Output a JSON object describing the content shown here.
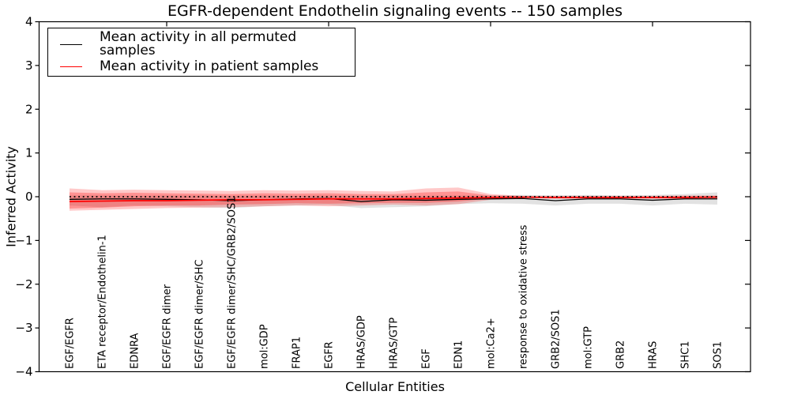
{
  "chart_data": {
    "type": "line",
    "title": "EGFR-dependent Endothelin signaling events -- 150 samples",
    "xlabel": "Cellular Entities",
    "ylabel": "Inferred Activity",
    "ylim": [
      -4,
      4
    ],
    "yticks": [
      -4,
      -3,
      -2,
      -1,
      0,
      1,
      2,
      3,
      4
    ],
    "grid": false,
    "legend_position": "upper left",
    "categories": [
      "EGF/EGFR",
      "ETA receptor/Endothelin-1",
      "EDNRA",
      "EGF/EGFR dimer",
      "EGF/EGFR dimer/SHC",
      "EGF/EGFR dimer/SHC/GRB2/SOS1",
      "mol:GDP",
      "FRAP1",
      "EGFR",
      "HRAS/GDP",
      "HRAS/GTP",
      "EGF",
      "EDN1",
      "mol:Ca2+",
      "response to oxidative stress",
      "GRB2/SOS1",
      "mol:GTP",
      "GRB2",
      "HRAS",
      "SHC1",
      "SOS1"
    ],
    "zero_line": {
      "value": 0,
      "style": "dotted",
      "color": "#000000"
    },
    "series": [
      {
        "name": "Mean activity in all permuted samples",
        "color": "#000000",
        "line_width": 1.3,
        "values": [
          -0.06,
          -0.05,
          -0.05,
          -0.06,
          -0.07,
          -0.09,
          -0.07,
          -0.05,
          -0.04,
          -0.11,
          -0.07,
          -0.08,
          -0.06,
          -0.05,
          -0.04,
          -0.09,
          -0.05,
          -0.05,
          -0.08,
          -0.05,
          -0.05
        ],
        "bands": [
          {
            "color": "rgba(125,125,125,0.22)",
            "hi": [
              0.03,
              0.03,
              0.02,
              0.03,
              0.03,
              0.02,
              0.03,
              0.02,
              0.03,
              0.02,
              0.03,
              0.02,
              0.03,
              0.03,
              0.04,
              0.03,
              0.04,
              0.03,
              0.04,
              0.06,
              0.1
            ],
            "lo": [
              -0.2,
              -0.24,
              -0.2,
              -0.22,
              -0.24,
              -0.26,
              -0.22,
              -0.2,
              -0.19,
              -0.26,
              -0.24,
              -0.22,
              -0.17,
              -0.15,
              -0.16,
              -0.2,
              -0.16,
              -0.16,
              -0.2,
              -0.16,
              -0.18
            ]
          }
        ]
      },
      {
        "name": "Mean activity in patient samples",
        "color": "#ff0000",
        "line_width": 1.7,
        "values": [
          -0.11,
          -0.1,
          -0.09,
          -0.09,
          -0.08,
          -0.07,
          -0.07,
          -0.06,
          -0.05,
          -0.05,
          -0.05,
          -0.04,
          -0.03,
          -0.02,
          -0.01,
          -0.02,
          -0.02,
          -0.02,
          -0.02,
          -0.02,
          -0.01
        ],
        "bands": [
          {
            "color": "rgba(255,0,0,0.21)",
            "hi": [
              0.19,
              0.15,
              0.16,
              0.15,
              0.14,
              0.13,
              0.15,
              0.14,
              0.15,
              0.13,
              0.12,
              0.19,
              0.21,
              0.06,
              0.02,
              0.02,
              0.02,
              0.02,
              0.02,
              0.03,
              0.03
            ],
            "lo": [
              -0.32,
              -0.3,
              -0.28,
              -0.26,
              -0.25,
              -0.24,
              -0.22,
              -0.2,
              -0.22,
              -0.2,
              -0.18,
              -0.2,
              -0.17,
              -0.07,
              -0.03,
              -0.04,
              -0.04,
              -0.04,
              -0.04,
              -0.05,
              -0.05
            ]
          },
          {
            "color": "rgba(255,0,0,0.27)",
            "hi": [
              0.1,
              0.08,
              0.09,
              0.08,
              0.07,
              0.06,
              0.08,
              0.07,
              0.08,
              0.06,
              0.06,
              0.1,
              0.12,
              0.03,
              0.01,
              0.01,
              0.01,
              0.01,
              0.01,
              0.015,
              0.015
            ],
            "lo": [
              -0.27,
              -0.25,
              -0.22,
              -0.2,
              -0.2,
              -0.18,
              -0.17,
              -0.15,
              -0.16,
              -0.15,
              -0.14,
              -0.14,
              -0.11,
              -0.04,
              -0.02,
              -0.03,
              -0.03,
              -0.02,
              -0.03,
              -0.03,
              -0.03
            ]
          }
        ]
      }
    ]
  }
}
